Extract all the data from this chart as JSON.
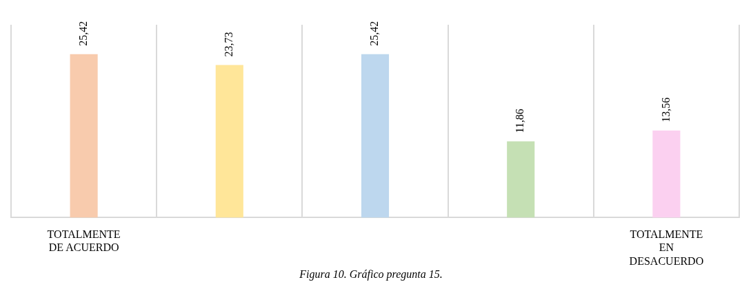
{
  "chart_data": {
    "type": "bar",
    "categories": [
      "TOTALMENTE DE ACUERDO",
      null,
      null,
      null,
      "TOTALMENTE EN DESACUERDO"
    ],
    "values": [
      25.42,
      23.73,
      25.42,
      11.86,
      13.56
    ],
    "colors": [
      "#f8cbad",
      "#ffe699",
      "#bdd7ee",
      "#c5e0b4",
      "#fbd0f0"
    ],
    "value_labels": [
      "25,42",
      "23,73",
      "25,42",
      "11,86",
      "13,56"
    ],
    "grid": "x",
    "tick_labels": "x",
    "annotations": [
      "Figura 10. Gráfico pregunta 15."
    ]
  }
}
